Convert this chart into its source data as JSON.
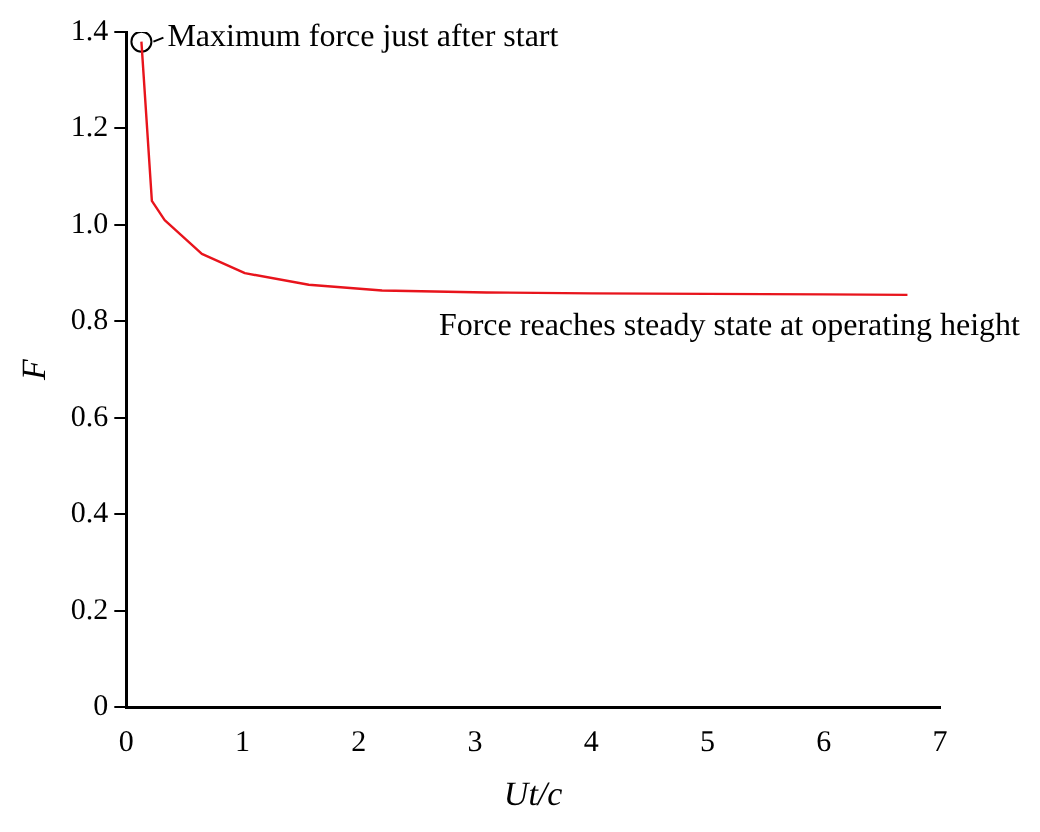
{
  "chart_data": {
    "type": "line",
    "xlabel": "Ut/c",
    "ylabel": "F",
    "x": [
      0.13,
      0.22,
      0.33,
      0.65,
      1.02,
      1.57,
      2.2,
      3.1,
      4.0,
      5.0,
      6.0,
      6.72
    ],
    "series": [
      {
        "color": "#e8141c",
        "values": [
          1.38,
          1.05,
          1.01,
          0.94,
          0.9,
          0.876,
          0.864,
          0.86,
          0.858,
          0.857,
          0.856,
          0.855
        ]
      },
      {
        "type": "scatter",
        "color": "#000000",
        "x": [
          0.13
        ],
        "values": [
          1.38
        ],
        "marker": "circle"
      }
    ],
    "annotations": [
      {
        "text": "Maximum force just after start",
        "x": 0.13,
        "y": 1.38
      },
      "Force reaches steady state at operating height"
    ],
    "xlim": [
      0,
      7
    ],
    "xticks": [
      0,
      1,
      2,
      3,
      4,
      5,
      6,
      7
    ],
    "ylim": [
      0,
      1.4
    ],
    "yticks": [
      0,
      0.2,
      0.4,
      0.6,
      0.8,
      {
        "value": 1,
        "label": "1.0"
      },
      1.2,
      1.4
    ],
    "grid": false,
    "legend": false,
    "marker": "none",
    "line_style": "solid"
  }
}
